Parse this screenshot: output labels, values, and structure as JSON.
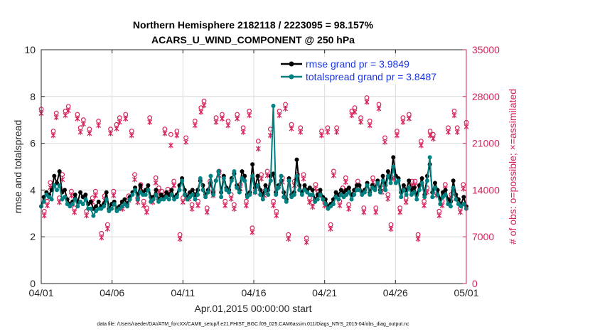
{
  "chart_data": {
    "type": "line",
    "title_line1": "Northern Hemisphere 2182118 / 2223095 = 98.157%",
    "title_line2": "ACARS_U_WIND_COMPONENT @ 250 hPa",
    "ylabel_left": "rmse and totalspread",
    "ylabel_right": "# of obs: o=possible; ×=assimilated",
    "xlabel": "Apr.01,2015 00:00:00 start",
    "footer": "data file: /Users/raeder/DAI/ATM_forcXX/CAM6_setup/f.e21.FHIST_BGC.f09_025.CAM6assim.011/Diags_NTrS_2015-04/obs_diag_output.nc",
    "x_tick_labels": [
      "04/01",
      "04/06",
      "04/11",
      "04/16",
      "04/21",
      "04/26",
      "05/01"
    ],
    "x_tick_days": [
      0,
      5,
      10,
      15,
      20,
      25,
      30
    ],
    "xlim": [
      0,
      30
    ],
    "ylim_left": [
      0,
      10
    ],
    "yticks_left": [
      "0",
      "2",
      "4",
      "6",
      "8",
      "10"
    ],
    "yticks_left_values": [
      0,
      2,
      4,
      6,
      8,
      10
    ],
    "ylim_right": [
      0,
      35000
    ],
    "yticks_right": [
      "0",
      "7000",
      "14000",
      "21000",
      "28000",
      "35000"
    ],
    "yticks_right_values": [
      0,
      7000,
      14000,
      21000,
      28000,
      35000
    ],
    "grid": true,
    "legend_position": "top-right",
    "colors": {
      "rmse": "#000000",
      "totalspread": "#008080",
      "obs": "#d6245a",
      "right_axis": "#d6245a",
      "legend_text": "#1a35e6",
      "grid": "#dcdcdc"
    },
    "series": [
      {
        "name": "rmse grand pr = 3.9849",
        "key": "rmse",
        "axis": "left",
        "values": [
          3.3,
          3.7,
          3.9,
          3.8,
          4.0,
          4.6,
          4.3,
          4.8,
          3.9,
          4.0,
          3.6,
          3.4,
          3.5,
          3.8,
          3.5,
          3.9,
          3.7,
          3.8,
          3.4,
          3.5,
          3.2,
          3.3,
          3.5,
          3.3,
          3.4,
          3.9,
          3.2,
          3.4,
          3.5,
          3.2,
          3.3,
          3.5,
          3.6,
          3.4,
          3.7,
          3.9,
          4.1,
          3.8,
          4.2,
          3.9,
          4.0,
          4.2,
          3.7,
          3.7,
          4.0,
          3.6,
          3.8,
          3.7,
          3.9,
          3.8,
          4.0,
          3.7,
          3.8,
          4.2,
          4.5,
          4.0,
          3.7,
          3.9,
          4.0,
          3.8,
          4.0,
          4.4,
          4.2,
          3.8,
          4.0,
          4.3,
          3.9,
          4.4,
          4.8,
          3.9,
          4.6,
          4.1,
          4.0,
          4.5,
          4.7,
          4.2,
          4.0,
          4.8,
          4.6,
          3.8,
          3.9,
          5.1,
          4.1,
          4.6,
          4.0,
          3.8,
          4.2,
          4.0,
          4.6,
          4.7,
          3.9,
          4.2,
          4.4,
          3.9,
          3.6,
          4.5,
          3.8,
          3.9,
          5.3,
          4.2,
          3.9,
          4.2,
          4.0,
          4.1,
          4.0,
          3.6,
          3.8,
          4.0,
          3.7,
          3.6,
          3.3,
          3.4,
          3.6,
          3.9,
          3.8,
          4.0,
          3.9,
          4.0,
          4.1,
          3.8,
          4.0,
          4.2,
          4.2,
          3.9,
          4.0,
          4.3,
          3.9,
          4.2,
          4.1,
          4.4,
          4.0,
          4.6,
          4.2,
          4.8,
          4.5,
          5.4,
          4.6,
          4.5,
          3.9,
          4.2,
          4.0,
          4.4,
          4.0,
          4.1,
          3.8,
          4.2,
          4.5,
          3.8,
          4.6,
          5.1,
          3.9,
          4.3,
          4.0,
          3.6,
          3.9,
          4.0,
          3.6,
          3.5,
          4.4,
          3.8,
          3.6,
          3.4,
          3.7,
          3.3
        ]
      },
      {
        "name": "totalspread grand pr = 3.8487",
        "key": "totalspread",
        "axis": "left",
        "values": [
          3.3,
          3.5,
          3.8,
          3.7,
          3.6,
          4.2,
          4.0,
          4.2,
          3.6,
          3.7,
          3.4,
          3.3,
          3.4,
          3.6,
          3.3,
          3.5,
          3.4,
          3.6,
          3.2,
          3.2,
          2.9,
          3.1,
          3.2,
          3.2,
          3.3,
          3.6,
          3.1,
          3.2,
          3.4,
          3.1,
          3.2,
          3.3,
          3.4,
          3.3,
          3.6,
          3.8,
          4.0,
          3.6,
          3.9,
          3.8,
          3.8,
          4.0,
          3.5,
          3.6,
          3.8,
          3.5,
          3.6,
          3.6,
          3.7,
          3.6,
          3.8,
          3.6,
          3.7,
          4.0,
          4.4,
          3.8,
          3.6,
          3.7,
          3.8,
          3.6,
          3.8,
          4.5,
          4.0,
          3.7,
          3.9,
          4.6,
          3.8,
          4.4,
          4.8,
          3.7,
          4.5,
          4.0,
          3.9,
          4.4,
          4.8,
          4.1,
          3.9,
          4.5,
          4.4,
          3.7,
          3.8,
          4.6,
          3.9,
          4.2,
          3.8,
          3.6,
          4.0,
          3.8,
          4.4,
          7.6,
          3.8,
          4.1,
          4.6,
          3.7,
          3.5,
          4.4,
          3.7,
          3.8,
          4.6,
          4.0,
          3.8,
          4.0,
          3.9,
          3.8,
          3.8,
          3.5,
          3.6,
          3.8,
          3.6,
          3.4,
          3.2,
          3.3,
          3.4,
          3.7,
          3.6,
          3.8,
          3.7,
          3.8,
          3.9,
          3.6,
          3.8,
          4.0,
          4.0,
          3.8,
          3.9,
          4.2,
          3.8,
          4.1,
          4.0,
          4.3,
          3.9,
          4.4,
          4.0,
          4.6,
          4.3,
          5.0,
          4.3,
          4.4,
          3.7,
          4.0,
          3.8,
          4.1,
          3.8,
          3.9,
          3.6,
          4.0,
          4.3,
          3.7,
          4.4,
          5.4,
          3.7,
          4.1,
          3.8,
          3.4,
          3.7,
          3.8,
          3.4,
          3.3,
          4.1,
          3.6,
          3.4,
          3.3,
          3.4,
          3.2
        ]
      },
      {
        "name": "obs possible",
        "key": "possible",
        "axis": "right",
        "values": [
          25800,
          10500,
          12000,
          14800,
          22500,
          25200,
          12500,
          16000,
          25500,
          26200,
          13500,
          11000,
          25000,
          23000,
          24200,
          10500,
          22800,
          12500,
          13500,
          24000,
          7200,
          12800,
          8500,
          22800,
          13500,
          23500,
          24500,
          11500,
          25000,
          12800,
          22500,
          16000,
          12500,
          14500,
          12000,
          11000,
          24500,
          12500,
          15500,
          14000,
          13500,
          22800,
          13800,
          22000,
          15000,
          22500,
          7000,
          12500,
          21500,
          13000,
          11500,
          24000,
          12000,
          26000,
          27000,
          11000,
          15000,
          13500,
          24500,
          16500,
          25000,
          12000,
          24000,
          13000,
          11500,
          25000,
          14500,
          23000,
          12000,
          25500,
          8000,
          14000,
          21000,
          16000,
          13500,
          16500,
          22800,
          12000,
          10500,
          25500,
          15500,
          26500,
          7000,
          23500,
          15000,
          16000,
          23000,
          16000,
          6500,
          12500,
          11800,
          14500,
          13500,
          22500,
          12000,
          23000,
          8500,
          16500,
          23000,
          12000,
          14000,
          15500,
          11500,
          25500,
          26000,
          15000,
          24500,
          11000,
          27500,
          24000,
          15500,
          11000,
          26500,
          14000,
          21500,
          13000,
          8500,
          16000,
          22500,
          11000,
          24500,
          12500,
          25000,
          15000,
          15000,
          7000,
          21000,
          12000,
          14000,
          22500,
          22000,
          13500,
          10500,
          12000,
          14500,
          23000,
          13000,
          25500,
          23000,
          11000,
          14500,
          23800
        ]
      },
      {
        "name": "obs assimilated",
        "key": "assimilated",
        "axis": "right",
        "values": [
          25800,
          10500,
          12000,
          14700,
          22500,
          25200,
          12500,
          15900,
          25500,
          26200,
          13500,
          11000,
          25000,
          23000,
          24200,
          10500,
          22800,
          12500,
          13500,
          24000,
          7200,
          12800,
          8500,
          22800,
          13500,
          23500,
          24500,
          11500,
          25000,
          12800,
          22500,
          15900,
          12500,
          14500,
          12000,
          11000,
          24500,
          12500,
          15400,
          14000,
          13500,
          22800,
          13800,
          21000,
          15000,
          22500,
          7000,
          12500,
          21500,
          13000,
          11500,
          24000,
          12000,
          26000,
          27000,
          11000,
          15000,
          13500,
          24500,
          16500,
          25000,
          12000,
          24000,
          13000,
          11500,
          25000,
          14500,
          23000,
          12000,
          25500,
          8000,
          14000,
          20500,
          16000,
          13500,
          16500,
          22500,
          12000,
          10500,
          25500,
          15500,
          26500,
          7000,
          23500,
          15000,
          16000,
          23000,
          16000,
          6500,
          12500,
          11800,
          14500,
          13500,
          22500,
          12000,
          23000,
          8500,
          16500,
          23000,
          12000,
          14000,
          15500,
          11500,
          25500,
          26000,
          15000,
          24500,
          11000,
          27500,
          24000,
          15500,
          11000,
          26500,
          14000,
          21500,
          13000,
          8500,
          16000,
          22500,
          11000,
          24500,
          12500,
          25000,
          15000,
          15000,
          7000,
          21000,
          12000,
          14000,
          22500,
          22000,
          13500,
          10500,
          12000,
          14500,
          23000,
          13000,
          25500,
          23000,
          11000,
          14500,
          23800
        ]
      }
    ]
  }
}
